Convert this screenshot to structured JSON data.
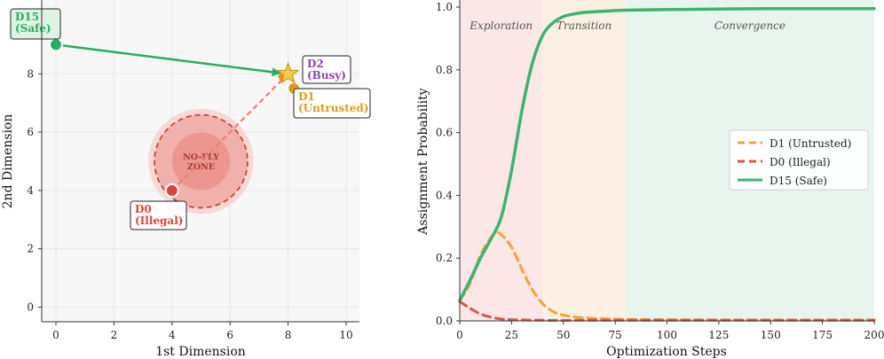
{
  "chart_data": [
    {
      "type": "scatter",
      "xlabel": "1st Dimension",
      "ylabel": "2nd Dimension",
      "xlim": [
        -0.5,
        10.5
      ],
      "ylim": [
        -0.4,
        10.5
      ],
      "xticks": [
        "0",
        "2",
        "4",
        "6",
        "8",
        "10"
      ],
      "yticks": [
        "0",
        "2",
        "4",
        "6",
        "8"
      ],
      "zone": {
        "label": "NO-FLY\nZONE",
        "label_lines": [
          "NO-FLY",
          "ZONE"
        ],
        "center": [
          5,
          5
        ],
        "radius": 1.6
      },
      "points": [
        {
          "id": "D15",
          "label_lines": [
            "D15",
            "(Safe)"
          ],
          "x": 0,
          "y": 9,
          "color": "#27ae60"
        },
        {
          "id": "D2",
          "label_lines": [
            "D2",
            "(Busy)"
          ],
          "x": 8,
          "y": 8,
          "color": "#8e44ad"
        },
        {
          "id": "D1",
          "label_lines": [
            "D1",
            "(Untrusted)"
          ],
          "x": 8.2,
          "y": 7.5,
          "color": "#e09a1a"
        },
        {
          "id": "D0",
          "label_lines": [
            "D0",
            "(Illegal)"
          ],
          "x": 4,
          "y": 4,
          "color": "#d9443a"
        }
      ],
      "target": {
        "x": 8,
        "y": 8
      },
      "arrows": [
        {
          "from": [
            0,
            9
          ],
          "to": [
            8,
            8
          ],
          "style": "solid",
          "color": "#27ae60"
        },
        {
          "from": [
            4,
            4
          ],
          "to": [
            8,
            8
          ],
          "style": "dashed",
          "color": "#ec7f72"
        }
      ]
    },
    {
      "type": "line",
      "xlabel": "Optimization Steps",
      "ylabel": "Assignment Probability",
      "xlim": [
        0,
        200
      ],
      "ylim": [
        0,
        1.0
      ],
      "xticks": [
        "0",
        "25",
        "50",
        "75",
        "100",
        "125",
        "150",
        "175",
        "200"
      ],
      "yticks": [
        "0.0",
        "0.2",
        "0.4",
        "0.6",
        "0.8",
        "1.0"
      ],
      "regions": [
        {
          "label": "Exploration",
          "start": 0,
          "end": 40,
          "color": "#f9e4e3"
        },
        {
          "label": "Transition",
          "start": 40,
          "end": 80,
          "color": "#fbeee0"
        },
        {
          "label": "Convergence",
          "start": 80,
          "end": 200,
          "color": "#e8f3ec"
        }
      ],
      "series": [
        {
          "name": "D1 (Untrusted)",
          "color": "#f0a43a",
          "style": "dashed",
          "x": [
            0,
            5,
            10,
            15,
            18,
            20,
            25,
            30,
            35,
            40,
            45,
            50,
            60,
            75,
            100,
            150,
            200
          ],
          "values": [
            0.065,
            0.12,
            0.21,
            0.265,
            0.28,
            0.275,
            0.235,
            0.165,
            0.1,
            0.055,
            0.03,
            0.018,
            0.01,
            0.006,
            0.004,
            0.003,
            0.003
          ]
        },
        {
          "name": "D0 (Illegal)",
          "color": "#e0524a",
          "style": "dashed",
          "x": [
            0,
            5,
            10,
            15,
            20,
            25,
            30,
            40,
            60,
            100,
            150,
            200
          ],
          "values": [
            0.062,
            0.04,
            0.022,
            0.012,
            0.006,
            0.004,
            0.003,
            0.002,
            0.002,
            0.002,
            0.002,
            0.002
          ]
        },
        {
          "name": "D15 (Safe)",
          "color": "#3cb371",
          "style": "solid",
          "x": [
            0,
            5,
            10,
            15,
            20,
            25,
            30,
            35,
            40,
            45,
            50,
            55,
            60,
            70,
            80,
            100,
            150,
            200
          ],
          "values": [
            0.065,
            0.13,
            0.2,
            0.26,
            0.33,
            0.48,
            0.67,
            0.82,
            0.91,
            0.95,
            0.97,
            0.978,
            0.983,
            0.987,
            0.99,
            0.992,
            0.995,
            0.995
          ]
        }
      ],
      "legend": "center-right"
    }
  ]
}
